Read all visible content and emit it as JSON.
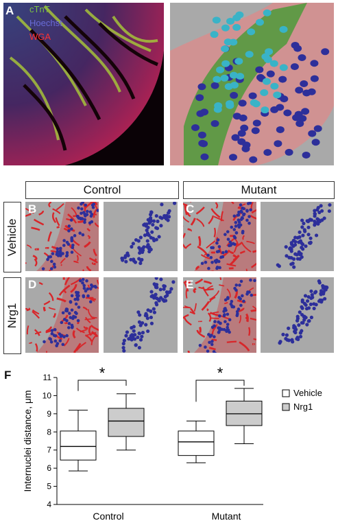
{
  "panel_a": {
    "label": "A",
    "channels": [
      {
        "name": "cTnT",
        "color": "#7cc242"
      },
      {
        "name": "Hoechst",
        "color": "#6a6cd8"
      },
      {
        "name": "WGA",
        "color": "#ff3030"
      }
    ]
  },
  "columns": {
    "control": "Control",
    "mutant": "Mutant"
  },
  "rows": {
    "vehicle": "Vehicle",
    "nrg1": "Nrg1"
  },
  "panel_labels": {
    "b": "B",
    "c": "C",
    "d": "D",
    "e": "E",
    "f": "F"
  },
  "colors": {
    "vessel_red": "#d8262a",
    "nuclei_blue": "#2d2f9a",
    "panel_gray": "#a9a9a9",
    "box_vehicle": "#ffffff",
    "box_nrg1": "#cccccc"
  },
  "chart_data": {
    "type": "boxplot",
    "ylabel": "Internuclei distance, μm",
    "ylim": [
      4,
      11
    ],
    "yticks": [
      4,
      5,
      6,
      7,
      8,
      9,
      10,
      11
    ],
    "categories": [
      "Control",
      "Mutant"
    ],
    "series": [
      {
        "name": "Vehicle",
        "color": "#ffffff",
        "boxes": [
          {
            "min": 5.85,
            "q1": 6.45,
            "median": 7.2,
            "q3": 8.05,
            "max": 9.2
          },
          {
            "min": 6.3,
            "q1": 6.7,
            "median": 7.45,
            "q3": 8.05,
            "max": 8.6
          }
        ]
      },
      {
        "name": "Nrg1",
        "color": "#cccccc",
        "boxes": [
          {
            "min": 7.0,
            "q1": 7.75,
            "median": 8.6,
            "q3": 9.3,
            "max": 10.1
          },
          {
            "min": 7.35,
            "q1": 8.35,
            "median": 9.0,
            "q3": 9.7,
            "max": 10.4
          }
        ]
      }
    ],
    "annotations": [
      {
        "text": "*",
        "between": [
          "Vehicle",
          "Nrg1"
        ],
        "category": "Control"
      },
      {
        "text": "*",
        "between": [
          "Vehicle",
          "Nrg1"
        ],
        "category": "Mutant"
      }
    ],
    "legend_position": "right"
  }
}
